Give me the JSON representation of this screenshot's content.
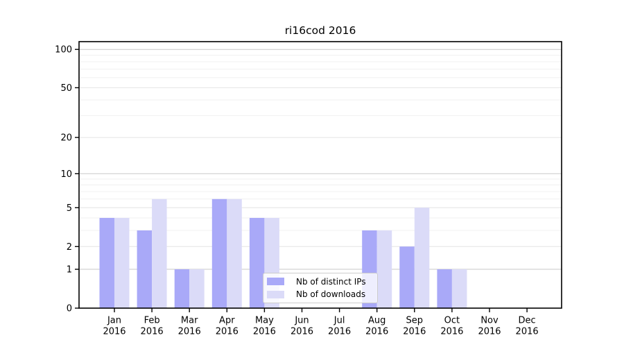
{
  "chart_data": {
    "type": "bar",
    "title": "ri16cod 2016",
    "categories": [
      "Jan",
      "Feb",
      "Mar",
      "Apr",
      "May",
      "Jun",
      "Jul",
      "Aug",
      "Sep",
      "Oct",
      "Nov",
      "Dec"
    ],
    "x_tick_year": "2016",
    "series": [
      {
        "name": "Nb of distinct IPs",
        "color": "#a9a9f8",
        "values": [
          4,
          3,
          1,
          6,
          4,
          0,
          0,
          3,
          2,
          1,
          0,
          0
        ]
      },
      {
        "name": "Nb of downloads",
        "color": "#dbdbf8",
        "values": [
          4,
          6,
          1,
          6,
          4,
          0,
          0,
          3,
          5,
          1,
          0,
          0
        ]
      }
    ],
    "xlabel": "",
    "ylabel": "",
    "yscale": "log1p",
    "ylim": [
      0,
      100
    ],
    "y_ticks": [
      0,
      1,
      2,
      5,
      10,
      20,
      50,
      100
    ],
    "y_minor_ticks": [
      3,
      4,
      6,
      7,
      8,
      9,
      30,
      40,
      60,
      70,
      80,
      90
    ],
    "grid": true,
    "legend_position": "lower center",
    "colors": {
      "axis": "#000000",
      "decade_gridline": "#c9c9c9",
      "major_gridline": "#e4e4e4",
      "minor_gridline": "#f0f0f0",
      "background": "#ffffff"
    }
  }
}
